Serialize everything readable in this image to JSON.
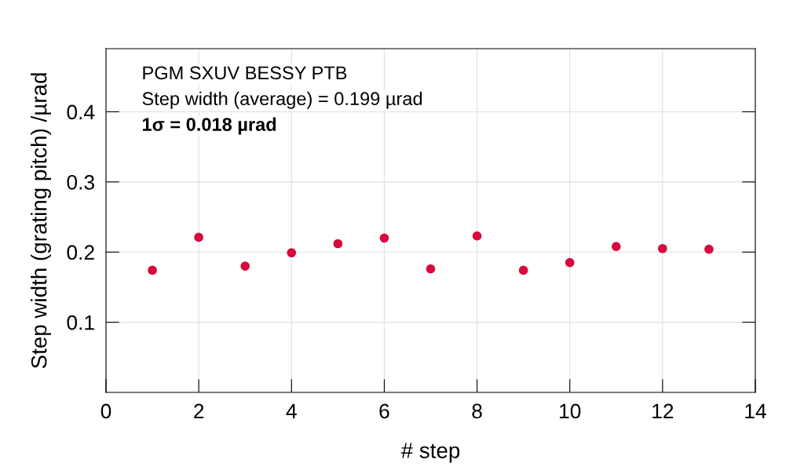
{
  "chart_data": {
    "type": "scatter",
    "xlabel": "# step",
    "ylabel": "Step width (grating pitch) /µrad",
    "x": [
      1,
      2,
      3,
      4,
      5,
      6,
      7,
      8,
      9,
      10,
      11,
      12,
      13
    ],
    "series": [
      {
        "color": "#d8093c",
        "values": [
          0.174,
          0.221,
          0.18,
          0.199,
          0.212,
          0.22,
          0.176,
          0.223,
          0.174,
          0.185,
          0.208,
          0.205,
          0.204
        ]
      }
    ],
    "xlim": [
      0,
      14
    ],
    "xticks": [
      0,
      2,
      4,
      6,
      8,
      10,
      12,
      14
    ],
    "ylim": [
      0,
      0.49
    ],
    "yticks": [
      0.1,
      0.2,
      0.3,
      0.4
    ],
    "grid": true,
    "marker": "circle",
    "annotations": [
      "PGM SXUV BESSY PTB",
      "Step width (average) = 0.199 µrad",
      "1σ = 0.018 µrad"
    ]
  }
}
